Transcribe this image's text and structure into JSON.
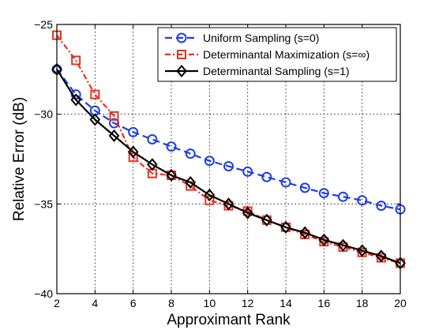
{
  "chart_data": {
    "type": "line",
    "title": "",
    "xlabel": "Approximant Rank",
    "ylabel": "Relative Error (dB)",
    "xlim": [
      2,
      20
    ],
    "ylim": [
      -40,
      -25
    ],
    "x_ticks": [
      2,
      4,
      6,
      8,
      10,
      12,
      14,
      16,
      18,
      20
    ],
    "y_ticks": [
      -25,
      -30,
      -35,
      -40
    ],
    "grid": true,
    "legend_position": "top-right",
    "x": [
      2,
      3,
      4,
      5,
      6,
      7,
      8,
      9,
      10,
      11,
      12,
      13,
      14,
      15,
      16,
      17,
      18,
      19,
      20
    ],
    "series": [
      {
        "name": "Uniform Sampling (s=0)",
        "color": "#1f3fdf",
        "line_style": "dashed",
        "marker": "circle",
        "values": [
          -27.5,
          -28.9,
          -29.8,
          -30.5,
          -31.0,
          -31.4,
          -31.8,
          -32.2,
          -32.6,
          -32.9,
          -33.2,
          -33.5,
          -33.8,
          -34.1,
          -34.4,
          -34.6,
          -34.8,
          -35.1,
          -35.3
        ]
      },
      {
        "name": "Determinantal Maximization (s=∞)",
        "color": "#e8321e",
        "line_style": "dashdot",
        "marker": "square",
        "values": [
          -25.6,
          -27.0,
          -28.9,
          -30.1,
          -32.4,
          -33.3,
          -33.4,
          -34.0,
          -34.8,
          -35.1,
          -35.4,
          -35.9,
          -36.3,
          -36.7,
          -37.1,
          -37.4,
          -37.7,
          -38.0,
          -38.3
        ]
      },
      {
        "name": "Determinantal Sampling (s=1)",
        "color": "#000000",
        "line_style": "solid",
        "marker": "diamond",
        "values": [
          -27.5,
          -29.2,
          -30.3,
          -31.2,
          -32.1,
          -32.8,
          -33.4,
          -33.8,
          -34.5,
          -35.0,
          -35.5,
          -35.9,
          -36.3,
          -36.6,
          -37.0,
          -37.3,
          -37.6,
          -37.9,
          -38.3
        ]
      }
    ]
  }
}
